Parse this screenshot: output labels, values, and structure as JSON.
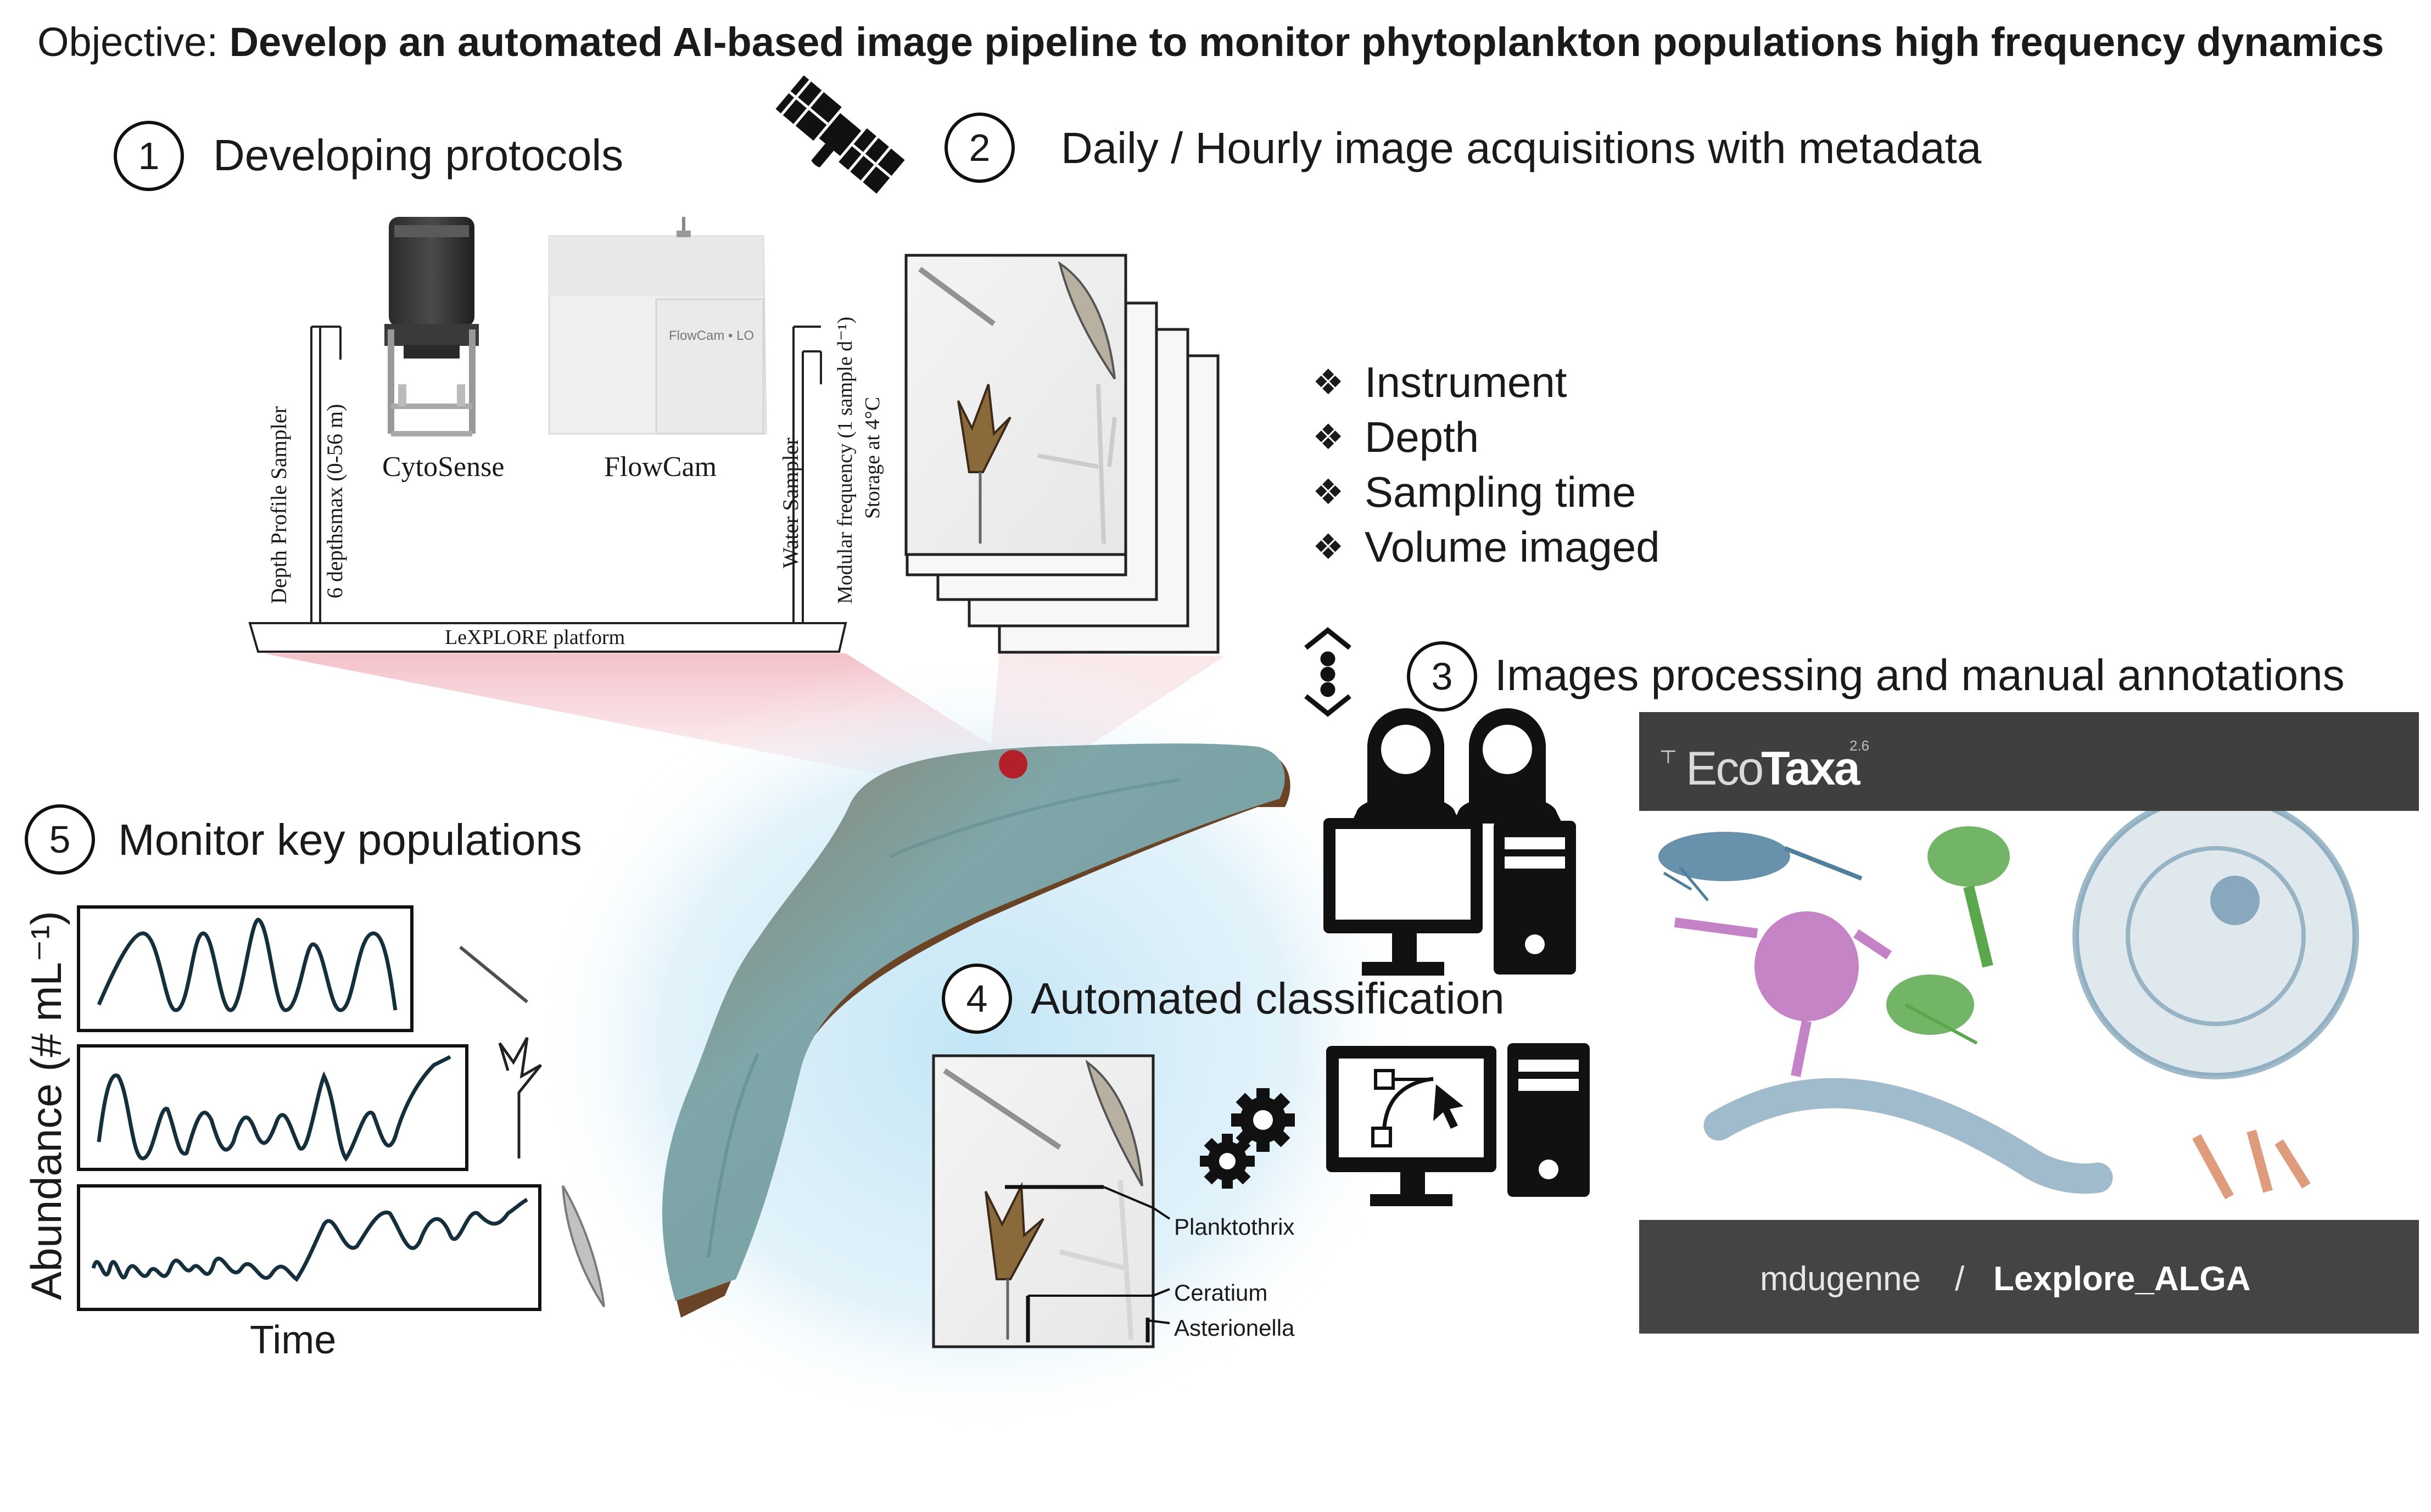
{
  "header": {
    "objective_label": "Objective: ",
    "objective_text": "Develop an automated AI-based image pipeline to monitor phytoplankton populations high frequency dynamics"
  },
  "steps": [
    {
      "number": "1",
      "label": "Developing protocols"
    },
    {
      "number": "2",
      "label": "Daily / Hourly image acquisitions with metadata"
    },
    {
      "number": "3",
      "label": "Images processing and manual annotations"
    },
    {
      "number": "4",
      "label": "Automated classification"
    },
    {
      "number": "5",
      "label": "Monitor key populations"
    }
  ],
  "instruments": {
    "cytosense": "CytoSense",
    "flowcam": "FlowCam",
    "flowcam_brand": "FlowCam • LO",
    "depth_sampler": "Depth Profile Sampler",
    "depth_range": "6 depthsmax  (0-56 m)",
    "water_sampler": "Water Sampler",
    "frequency": "Modular frequency (1 sample d⁻¹)",
    "storage": "Storage at 4°C",
    "platform": "LeXPLORE platform"
  },
  "metadata_items": [
    "Instrument",
    "Depth",
    "Sampling time",
    "Volume imaged"
  ],
  "metadata_bullet_icon": "diamond-bullet-icon",
  "classification_labels": [
    "Planktothrix",
    "Ceratium",
    "Asterionella"
  ],
  "ecotaxa": {
    "logo_prefix": "Eco",
    "logo_suffix": "Taxa",
    "version": "2.6"
  },
  "github": {
    "user": "mdugenne",
    "separator": "/",
    "repo": "Lexplore_ALGA",
    "icon": "github-icon"
  },
  "monitor_plot": {
    "ylabel": "Abundance (# mL⁻¹)",
    "xlabel": "Time"
  },
  "colors": {
    "lake_surface": "#7fa6a8",
    "lake_shore": "#6b4325",
    "location_marker": "#b3202a",
    "sparkline": "#14303c",
    "ecotaxa_blue": "#4e7f9c",
    "ecotaxa_green": "#5aa84c",
    "ecotaxa_magenta": "#b565b8",
    "ecotaxa_orange": "#d98b66"
  }
}
